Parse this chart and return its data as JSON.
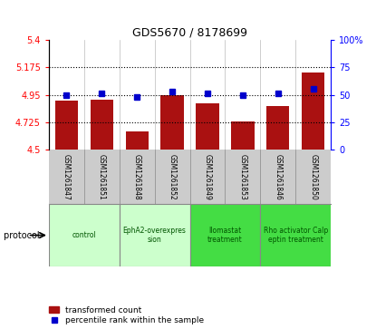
{
  "title": "GDS5670 / 8178699",
  "samples": [
    "GSM1261847",
    "GSM1261851",
    "GSM1261848",
    "GSM1261852",
    "GSM1261849",
    "GSM1261853",
    "GSM1261846",
    "GSM1261850"
  ],
  "bar_values": [
    4.9,
    4.91,
    4.65,
    4.95,
    4.88,
    4.73,
    4.855,
    5.13
  ],
  "percentile_values": [
    50,
    51,
    48,
    53,
    51,
    50,
    51,
    55
  ],
  "ylim_left": [
    4.5,
    5.4
  ],
  "ylim_right": [
    0,
    100
  ],
  "yticks_left": [
    4.5,
    4.725,
    4.95,
    5.175,
    5.4
  ],
  "ytick_labels_left": [
    "4.5",
    "4.725",
    "4.95",
    "5.175",
    "5.4"
  ],
  "yticks_right": [
    0,
    25,
    50,
    75,
    100
  ],
  "ytick_labels_right": [
    "0",
    "25",
    "50",
    "75",
    "100%"
  ],
  "hlines": [
    4.725,
    4.95,
    5.175
  ],
  "bar_color": "#AA1111",
  "percentile_color": "#0000CC",
  "bar_bottom": 4.5,
  "groups": [
    {
      "label": "control",
      "indices": [
        0,
        1
      ],
      "color": "#ccffcc"
    },
    {
      "label": "EphA2-overexpres\nsion",
      "indices": [
        2,
        3
      ],
      "color": "#ccffcc"
    },
    {
      "label": "Ilomastat\ntreatment",
      "indices": [
        4,
        5
      ],
      "color": "#44dd44"
    },
    {
      "label": "Rho activator Calp\neptin treatment",
      "indices": [
        6,
        7
      ],
      "color": "#44dd44"
    }
  ],
  "sample_bg_color": "#cccccc",
  "protocol_label": "protocol",
  "legend_bar_label": "transformed count",
  "legend_pct_label": "percentile rank within the sample",
  "fig_width": 4.15,
  "fig_height": 3.63,
  "dpi": 100
}
